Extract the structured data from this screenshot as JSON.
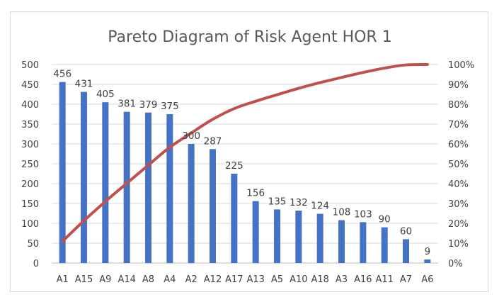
{
  "chart_data": {
    "type": "bar",
    "title": "Pareto Diagram of Risk Agent HOR 1",
    "categories": [
      "A1",
      "A15",
      "A9",
      "A14",
      "A8",
      "A4",
      "A2",
      "A12",
      "A17",
      "A13",
      "A5",
      "A10",
      "A18",
      "A3",
      "A16",
      "A11",
      "A7",
      "A6"
    ],
    "series": [
      {
        "type": "bar",
        "values": [
          456,
          431,
          405,
          381,
          379,
          375,
          300,
          287,
          225,
          156,
          135,
          132,
          124,
          108,
          103,
          90,
          60,
          9
        ]
      },
      {
        "type": "line",
        "axis": "secondary",
        "values": [
          10.9,
          21.3,
          31.0,
          40.2,
          49.3,
          58.3,
          65.5,
          72.4,
          77.8,
          81.5,
          84.8,
          88.0,
          90.9,
          93.5,
          96.0,
          98.2,
          99.8,
          100.0
        ]
      }
    ],
    "ylim": [
      0,
      500
    ],
    "y_ticks": [
      "0",
      "50",
      "100",
      "150",
      "200",
      "250",
      "300",
      "350",
      "400",
      "450",
      "500"
    ],
    "y2lim": [
      0,
      100
    ],
    "y2_ticks": [
      "0%",
      "10%",
      "20%",
      "30%",
      "40%",
      "50%",
      "60%",
      "70%",
      "80%",
      "90%",
      "100%"
    ],
    "grid": true,
    "colors": {
      "bar": "#4472C4",
      "line": "#C0504D",
      "grid": "#d9d9d9"
    }
  }
}
